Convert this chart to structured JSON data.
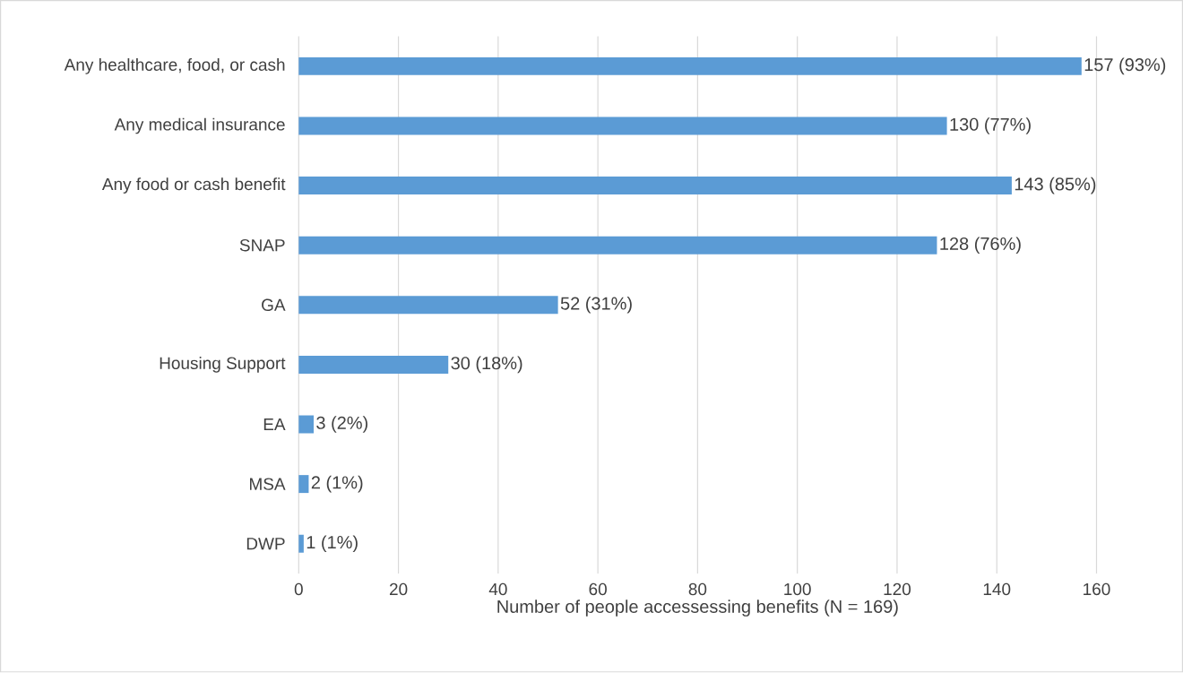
{
  "chart_data": {
    "type": "bar",
    "orientation": "horizontal",
    "categories": [
      "Any healthcare, food, or cash",
      "Any medical insurance",
      "Any food or cash benefit",
      "SNAP",
      "GA",
      "Housing Support",
      "EA",
      "MSA",
      "DWP"
    ],
    "values": [
      157,
      130,
      143,
      128,
      52,
      30,
      3,
      2,
      1
    ],
    "value_labels": [
      "157 (93%)",
      "130 (77%)",
      "143 (85%)",
      "128 (76%)",
      "52 (31%)",
      "30 (18%)",
      "3 (2%)",
      "2 (1%)",
      "1 (1%)"
    ],
    "color": "#5b9bd5",
    "xlabel": "Number of people accessessing benefits (N = 169)",
    "xlim": [
      0,
      160
    ],
    "xticks": [
      0,
      20,
      40,
      60,
      80,
      100,
      120,
      140,
      160
    ],
    "grid": "x"
  }
}
